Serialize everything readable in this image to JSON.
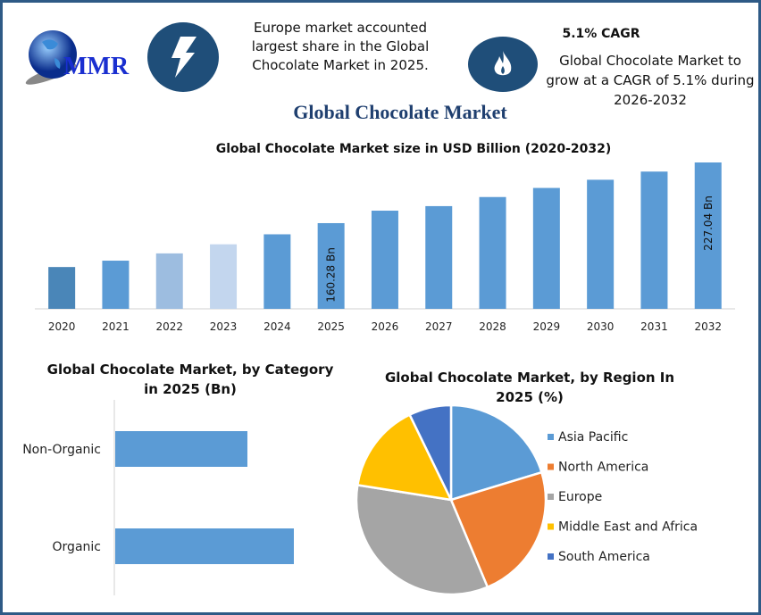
{
  "header": {
    "logo_text": "MMR",
    "europe_note": "Europe market accounted largest share in the Global Chocolate Market in 2025.",
    "cagr_title": "5.1% CAGR",
    "cagr_note": "Global Chocolate Market to grow at a CAGR of 5.1% during 2026-2032",
    "main_title": "Global Chocolate Market"
  },
  "colors": {
    "frame": "#2e5a86",
    "icon_bg": "#1f4e79",
    "bar": "#5b9bd5"
  },
  "chart_data": [
    {
      "type": "bar",
      "title": "Global Chocolate Market size in USD Billion (2020-2032)",
      "categories": [
        "2020",
        "2021",
        "2022",
        "2023",
        "2024",
        "2025",
        "2026",
        "2027",
        "2028",
        "2029",
        "2030",
        "2031",
        "2032"
      ],
      "values": [
        112,
        119,
        127,
        137,
        148,
        160.28,
        174,
        179,
        189,
        199,
        208,
        217,
        227.04
      ],
      "colors": [
        "#4a86b8",
        "#5b9bd5",
        "#9dbde0",
        "#c3d6ee",
        "#5b9bd5",
        "#5b9bd5",
        "#5b9bd5",
        "#5b9bd5",
        "#5b9bd5",
        "#5b9bd5",
        "#5b9bd5",
        "#5b9bd5",
        "#5b9bd5"
      ],
      "data_labels": {
        "2025": "160.28 Bn",
        "2032": "227.04 Bn"
      },
      "ylim": [
        66,
        230
      ],
      "xlabel": "",
      "ylabel": ""
    },
    {
      "type": "bar",
      "orientation": "horizontal",
      "title": "Global Chocolate Market, by Category in 2025 (Bn)",
      "categories": [
        "Non-Organic",
        "Organic"
      ],
      "values": [
        0.74,
        1.0
      ],
      "ylim": [
        0,
        1.35
      ]
    },
    {
      "type": "pie",
      "title": "Global Chocolate Market, by Region In 2025 (%)",
      "labels": [
        "Asia Pacific",
        "North America",
        "Europe",
        "Middle East and Africa",
        "South America"
      ],
      "values": [
        20.3,
        23.4,
        33.8,
        15.3,
        7.2
      ],
      "colors": [
        "#5b9bd5",
        "#ed7d31",
        "#a5a5a5",
        "#ffc000",
        "#4472c4"
      ],
      "legend": "right"
    }
  ]
}
